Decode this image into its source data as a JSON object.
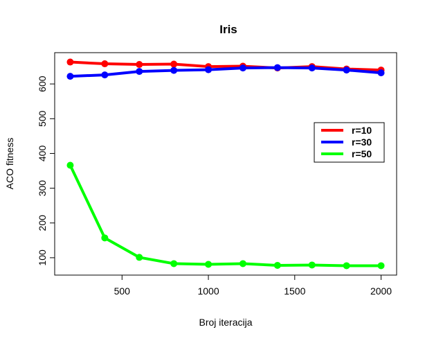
{
  "chart_data": {
    "type": "line",
    "title": "Iris",
    "xlabel": "Broj iteracija",
    "ylabel": "ACO fitness",
    "x": [
      200,
      400,
      600,
      800,
      1000,
      1200,
      1400,
      1600,
      1800,
      2000
    ],
    "xlim": [
      110,
      2090
    ],
    "ylim": [
      50,
      690
    ],
    "xticks": [
      500,
      1000,
      1500,
      2000
    ],
    "yticks": [
      100,
      200,
      300,
      400,
      500,
      600
    ],
    "grid": false,
    "legend_position": "right",
    "series": [
      {
        "name": "r=10",
        "color": "#ff0000",
        "values": [
          663,
          658,
          656,
          657,
          650,
          651,
          646,
          650,
          643,
          640
        ]
      },
      {
        "name": "r=30",
        "color": "#0000ff",
        "values": [
          622,
          626,
          636,
          639,
          641,
          646,
          647,
          646,
          640,
          632
        ]
      },
      {
        "name": "r=50",
        "color": "#00ff00",
        "values": [
          366,
          157,
          101,
          83,
          81,
          83,
          78,
          79,
          77,
          77
        ]
      }
    ]
  }
}
